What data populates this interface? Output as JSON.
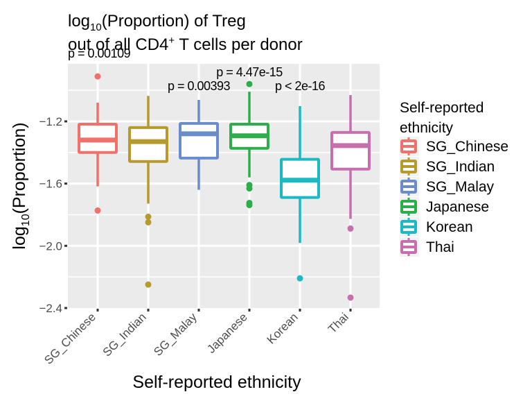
{
  "chart_data": {
    "type": "box",
    "title_line1_prefix": "log",
    "title_line1_sub": "10",
    "title_line1_suffix": "(Proportion) of Treg",
    "title_line2_prefix": "out of all CD4",
    "title_line2_sup": "+",
    "title_line2_suffix": " T cells per donor",
    "xlabel": "Self-reported ethnicity",
    "ylabel_prefix": "log",
    "ylabel_sub": "10",
    "ylabel_suffix": "(Proportion)",
    "ylim": [
      -2.4,
      -0.83
    ],
    "yticks": [
      -1.2,
      -1.6,
      -2.0,
      -2.4
    ],
    "ytick_labels": [
      "−1.2",
      "−1.6",
      "−2.0",
      "−2.4"
    ],
    "yminor": [
      -1.0,
      -1.4,
      -1.8,
      -2.2
    ],
    "grid": true,
    "categories": [
      "SG_Chinese",
      "SG_Indian",
      "SG_Malay",
      "Japanese",
      "Korean",
      "Thai"
    ],
    "series": [
      {
        "name": "SG_Chinese",
        "color": "#F0706A",
        "whisker_low": -1.618,
        "q1": -1.4,
        "median": -1.32,
        "q3": -1.218,
        "whisker_high": -1.08,
        "outliers": [
          -0.911,
          -1.773
        ]
      },
      {
        "name": "SG_Indian",
        "color": "#B79A2D",
        "whisker_low": -1.729,
        "q1": -1.458,
        "median": -1.33,
        "q3": -1.24,
        "whisker_high": -1.036,
        "outliers": [
          -1.813,
          -1.849,
          -2.249
        ]
      },
      {
        "name": "SG_Malay",
        "color": "#6A8CCB",
        "whisker_low": -1.64,
        "q1": -1.436,
        "median": -1.28,
        "q3": -1.213,
        "whisker_high": -1.062,
        "outliers": []
      },
      {
        "name": "Japanese",
        "color": "#2EAE4A",
        "whisker_low": -1.56,
        "q1": -1.373,
        "median": -1.293,
        "q3": -1.218,
        "whisker_high": -1.009,
        "outliers": [
          -0.96,
          -1.609,
          -1.631,
          -1.724,
          -1.738
        ]
      },
      {
        "name": "Korean",
        "color": "#1BB9C2",
        "whisker_low": -1.982,
        "q1": -1.689,
        "median": -1.578,
        "q3": -1.444,
        "whisker_high": -1.102,
        "outliers": [
          -2.209
        ]
      },
      {
        "name": "Thai",
        "color": "#C76FAE",
        "whisker_low": -1.827,
        "q1": -1.507,
        "median": -1.356,
        "q3": -1.271,
        "whisker_high": -1.031,
        "outliers": [
          -1.889,
          -2.333
        ]
      }
    ],
    "annotations": [
      {
        "category": "SG_Chinese",
        "text": "p = 0.00109",
        "y": -0.79
      },
      {
        "category": "SG_Malay",
        "text": "p = 0.00393",
        "y": -1.0
      },
      {
        "category": "Japanese",
        "text": "p = 4.47e-15",
        "y": -0.91
      },
      {
        "category": "Korean",
        "text": "p < 2e-16",
        "y": -1.0
      }
    ],
    "legend": {
      "title_line1": "Self-reported",
      "title_line2": "ethnicity",
      "position": "right",
      "entries": [
        "SG_Chinese",
        "SG_Indian",
        "SG_Malay",
        "Japanese",
        "Korean",
        "Thai"
      ]
    }
  }
}
